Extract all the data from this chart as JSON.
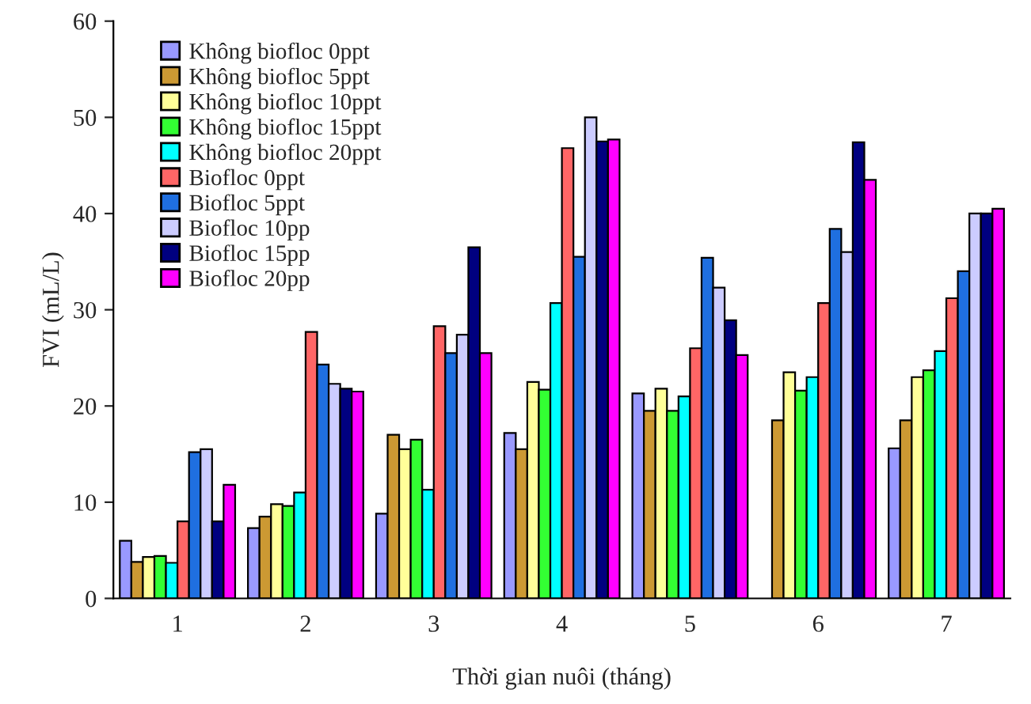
{
  "chart_data": {
    "type": "bar",
    "xlabel": "Thời gian nuôi (tháng)",
    "ylabel": "FVI (mL/L)",
    "categories": [
      "1",
      "2",
      "3",
      "4",
      "5",
      "6",
      "7"
    ],
    "ylim": [
      0,
      60
    ],
    "yticks": [
      0,
      10,
      20,
      30,
      40,
      50,
      60
    ],
    "grid": false,
    "legend": "top left",
    "series": [
      {
        "name": "Không biofloc 0ppt",
        "color": "#9999ff",
        "values": [
          6.0,
          7.3,
          8.8,
          17.2,
          21.3,
          null,
          15.6
        ]
      },
      {
        "name": "Không biofloc 5ppt",
        "color": "#cc9933",
        "values": [
          3.8,
          8.5,
          17.0,
          15.5,
          19.5,
          18.5,
          18.5
        ]
      },
      {
        "name": "Không biofloc 10ppt",
        "color": "#ffff99",
        "values": [
          4.3,
          9.8,
          15.5,
          22.5,
          21.8,
          23.5,
          23.0
        ]
      },
      {
        "name": "Không biofloc 15ppt",
        "color": "#33ff33",
        "values": [
          4.4,
          9.6,
          16.5,
          21.7,
          19.5,
          21.6,
          23.7
        ]
      },
      {
        "name": "Không biofloc 20ppt",
        "color": "#00ffff",
        "values": [
          3.7,
          11.0,
          11.3,
          30.7,
          21.0,
          23.0,
          25.7
        ]
      },
      {
        "name": "Biofloc 0ppt",
        "color": "#ff6666",
        "values": [
          8.0,
          27.7,
          28.3,
          46.8,
          26.0,
          30.7,
          31.2
        ]
      },
      {
        "name": "Biofloc 5ppt",
        "color": "#1f6fe0",
        "values": [
          15.2,
          24.3,
          25.5,
          35.5,
          35.4,
          38.4,
          34.0
        ]
      },
      {
        "name": "Biofloc 10pp",
        "color": "#ccccff",
        "values": [
          15.5,
          22.3,
          27.4,
          50.0,
          32.3,
          36.0,
          40.0
        ]
      },
      {
        "name": "Biofloc 15pp",
        "color": "#000080",
        "values": [
          8.0,
          21.8,
          36.5,
          47.5,
          28.9,
          47.4,
          40.0
        ]
      },
      {
        "name": "Biofloc 20pp",
        "color": "#ff00ff",
        "values": [
          11.8,
          21.5,
          25.5,
          47.7,
          25.3,
          43.5,
          40.5
        ]
      }
    ]
  }
}
